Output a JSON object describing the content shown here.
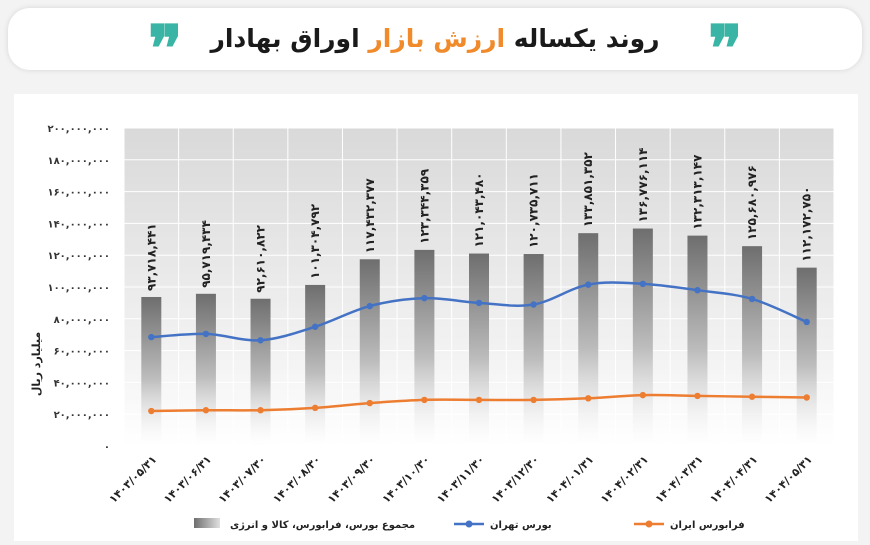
{
  "header": {
    "title_pre": "روند یکساله ",
    "title_accent": "ارزش بازار",
    "title_post": " اوراق بهادار",
    "quote_glyph": "❞",
    "accent_color": "#f08a2a",
    "quote_color": "#3ab5a5"
  },
  "chart_data": {
    "type": "bar",
    "ylabel": "میلیارد ریال",
    "ylim": [
      0,
      200000000
    ],
    "yticks": [
      "۰",
      "۲۰,۰۰۰,۰۰۰",
      "۴۰,۰۰۰,۰۰۰",
      "۶۰,۰۰۰,۰۰۰",
      "۸۰,۰۰۰,۰۰۰",
      "۱۰۰,۰۰۰,۰۰۰",
      "۱۲۰,۰۰۰,۰۰۰",
      "۱۴۰,۰۰۰,۰۰۰",
      "۱۶۰,۰۰۰,۰۰۰",
      "۱۸۰,۰۰۰,۰۰۰",
      "۲۰۰,۰۰۰,۰۰۰"
    ],
    "ytick_values": [
      0,
      20000000,
      40000000,
      60000000,
      80000000,
      100000000,
      120000000,
      140000000,
      160000000,
      180000000,
      200000000
    ],
    "categories": [
      "۱۴۰۳/۰۵/۳۱",
      "۱۴۰۳/۰۶/۳۱",
      "۱۴۰۳/۰۷/۳۰",
      "۱۴۰۳/۰۸/۳۰",
      "۱۴۰۳/۰۹/۳۰",
      "۱۴۰۳/۱۰/۳۰",
      "۱۴۰۳/۱۱/۳۰",
      "۱۴۰۳/۱۲/۳۰",
      "۱۴۰۴/۰۱/۳۱",
      "۱۴۰۴/۰۲/۳۱",
      "۱۴۰۴/۰۳/۳۱",
      "۱۴۰۴/۰۴/۳۱",
      "۱۴۰۴/۰۵/۳۱"
    ],
    "grid": true,
    "legend_position": "bottom",
    "series": [
      {
        "name": "مجموع بورس، فرابورس، کالا و انرژی",
        "kind": "bar",
        "color": "#7a7a7a",
        "values": [
          93718441,
          95719434,
          92610822,
          101304792,
          117432377,
          123344359,
          121043480,
          120735711,
          133851352,
          136776114,
          132313147,
          125680976,
          112172750
        ],
        "labels": [
          "۹۳,۷۱۸,۴۴۱",
          "۹۵,۷۱۹,۴۳۴",
          "۹۲,۶۱۰,۸۲۲",
          "۱۰۱,۳۰۴,۷۹۲",
          "۱۱۷,۴۳۲,۳۷۷",
          "۱۲۳,۳۴۴,۳۵۹",
          "۱۲۱,۰۴۳,۴۸۰",
          "۱۲۰,۷۳۵,۷۱۱",
          "۱۳۳,۸۵۱,۳۵۲",
          "۱۳۶,۷۷۶,۱۱۴",
          "۱۳۲,۳۱۳,۱۴۷",
          "۱۲۵,۶۸۰,۹۷۶",
          "۱۱۲,۱۷۲,۷۵۰"
        ]
      },
      {
        "name": "بورس تهران",
        "kind": "line",
        "color": "#4472c4",
        "values": [
          68500000,
          70500000,
          66500000,
          75000000,
          88000000,
          93000000,
          90000000,
          89000000,
          101500000,
          102000000,
          98000000,
          92500000,
          78000000
        ]
      },
      {
        "name": "فرابورس ایران",
        "kind": "line",
        "color": "#ed7d31",
        "values": [
          22000000,
          22500000,
          22500000,
          24000000,
          27000000,
          29000000,
          29000000,
          29000000,
          30000000,
          32000000,
          31500000,
          31000000,
          30500000
        ]
      }
    ]
  }
}
